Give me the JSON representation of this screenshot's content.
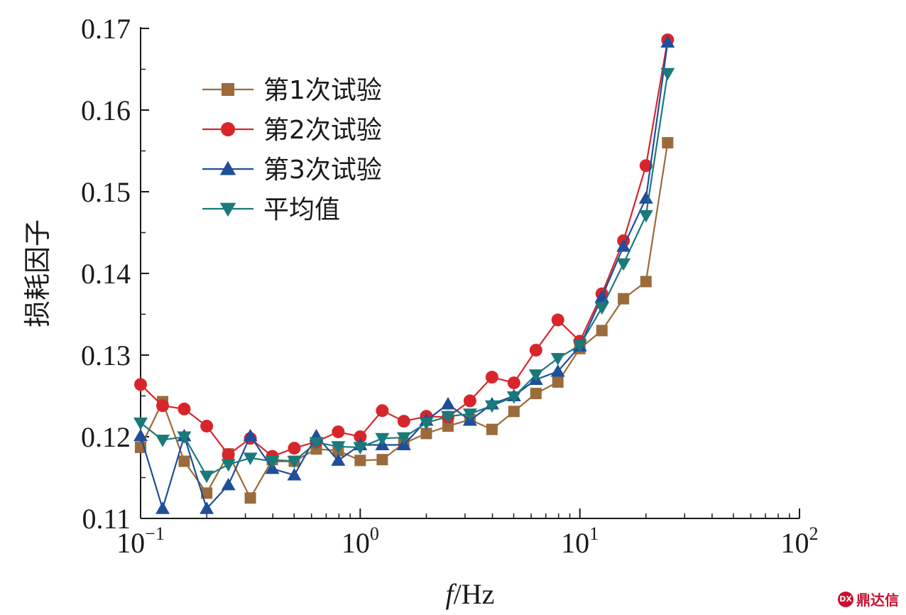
{
  "chart_data": {
    "type": "line",
    "xscale": "log",
    "xlim": [
      0.1,
      100
    ],
    "ylim": [
      0.11,
      0.17
    ],
    "ylabel": "损耗因子",
    "xlabel_italic": "f",
    "xlabel_unit": "/Hz",
    "yticks": [
      "0.11",
      "0.12",
      "0.13",
      "0.14",
      "0.15",
      "0.16",
      "0.17"
    ],
    "xticks": [
      {
        "value": 0.1,
        "base": "10",
        "exp": "−1"
      },
      {
        "value": 1,
        "base": "10",
        "exp": "0"
      },
      {
        "value": 10,
        "base": "10",
        "exp": "1"
      },
      {
        "value": 100,
        "base": "10",
        "exp": "2"
      }
    ],
    "grid": false,
    "legend_position": "top-left",
    "x": [
      0.1,
      0.126,
      0.158,
      0.2,
      0.251,
      0.316,
      0.398,
      0.501,
      0.631,
      0.794,
      1.0,
      1.26,
      1.58,
      2.0,
      2.51,
      3.16,
      3.98,
      5.01,
      6.31,
      7.94,
      10.0,
      12.6,
      15.8,
      20.0,
      25.1
    ],
    "series": [
      {
        "name": "第1次试验",
        "color": "#9b6b3a",
        "marker": "square",
        "values": [
          0.1187,
          0.1243,
          0.117,
          0.1131,
          0.1179,
          0.1125,
          0.1172,
          0.117,
          0.1185,
          0.1183,
          0.1171,
          0.1172,
          0.1192,
          0.1204,
          0.1213,
          0.1221,
          0.1209,
          0.1231,
          0.1253,
          0.1267,
          0.1308,
          0.133,
          0.1369,
          0.139,
          0.156
        ]
      },
      {
        "name": "第2次试验",
        "color": "#d7262b",
        "marker": "circle",
        "values": [
          0.1264,
          0.1238,
          0.1234,
          0.1213,
          0.1178,
          0.1198,
          0.1176,
          0.1186,
          0.1194,
          0.1206,
          0.12,
          0.1232,
          0.1219,
          0.1225,
          0.1224,
          0.1244,
          0.1273,
          0.1266,
          0.1306,
          0.1343,
          0.1317,
          0.1375,
          0.144,
          0.1532,
          0.1686
        ]
      },
      {
        "name": "第3次试验",
        "color": "#1f4e9a",
        "marker": "triangle-up",
        "values": [
          0.1201,
          0.1112,
          0.1201,
          0.1112,
          0.1141,
          0.1201,
          0.1161,
          0.1153,
          0.1201,
          0.1171,
          0.119,
          0.119,
          0.119,
          0.122,
          0.124,
          0.122,
          0.124,
          0.125,
          0.127,
          0.128,
          0.1311,
          0.1371,
          0.1433,
          0.1492,
          0.1683
        ]
      },
      {
        "name": "平均值",
        "color": "#1a7a7a",
        "marker": "triangle-down",
        "values": [
          0.1217,
          0.1196,
          0.12,
          0.1152,
          0.1166,
          0.1174,
          0.117,
          0.117,
          0.1193,
          0.1188,
          0.1187,
          0.1198,
          0.1199,
          0.1217,
          0.1225,
          0.1228,
          0.1238,
          0.1249,
          0.1276,
          0.1296,
          0.1312,
          0.1358,
          0.1412,
          0.1471,
          0.1645
        ]
      }
    ]
  },
  "watermark": {
    "logo": "DX",
    "text": "鼎达信"
  }
}
